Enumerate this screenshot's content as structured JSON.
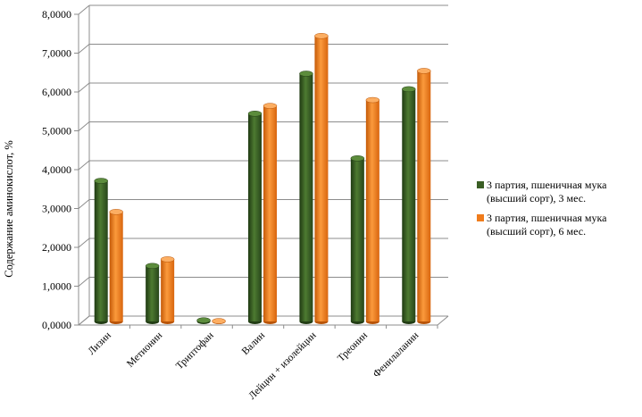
{
  "chart_data": {
    "type": "bar",
    "title": "",
    "ylabel": "Содержание аминокислот, %",
    "xlabel": "",
    "ylim": [
      0,
      8
    ],
    "yticks": [
      "0,0000",
      "1,0000",
      "2,0000",
      "3,0000",
      "4,0000",
      "5,0000",
      "6,0000",
      "7,0000",
      "8,0000"
    ],
    "categories": [
      "Лизин",
      "Метионин",
      "Триптофан",
      "Валин",
      "Лейцин + изолейцин",
      "Треонин",
      "Фенилаланин"
    ],
    "series": [
      {
        "name": "3 партия, пшеничная мука (высший сорт), 3 мес.",
        "color": "#3a5e24",
        "values": [
          3.62,
          1.43,
          0.03,
          5.35,
          6.38,
          4.2,
          5.98
        ]
      },
      {
        "name": "3 партия, пшеничная мука (высший сорт), 6 мес.",
        "color": "#f07c1c",
        "values": [
          2.82,
          1.6,
          0.01,
          5.55,
          7.35,
          5.7,
          6.45
        ]
      }
    ],
    "grid": true,
    "legend": "right"
  },
  "legend": {
    "items": [
      {
        "line1": "3 партия, пшеничная мука",
        "line2": "(высший сорт), 3 мес."
      },
      {
        "line1": "3 партия, пшеничная мука",
        "line2": "(высший сорт), 6 мес."
      }
    ]
  }
}
